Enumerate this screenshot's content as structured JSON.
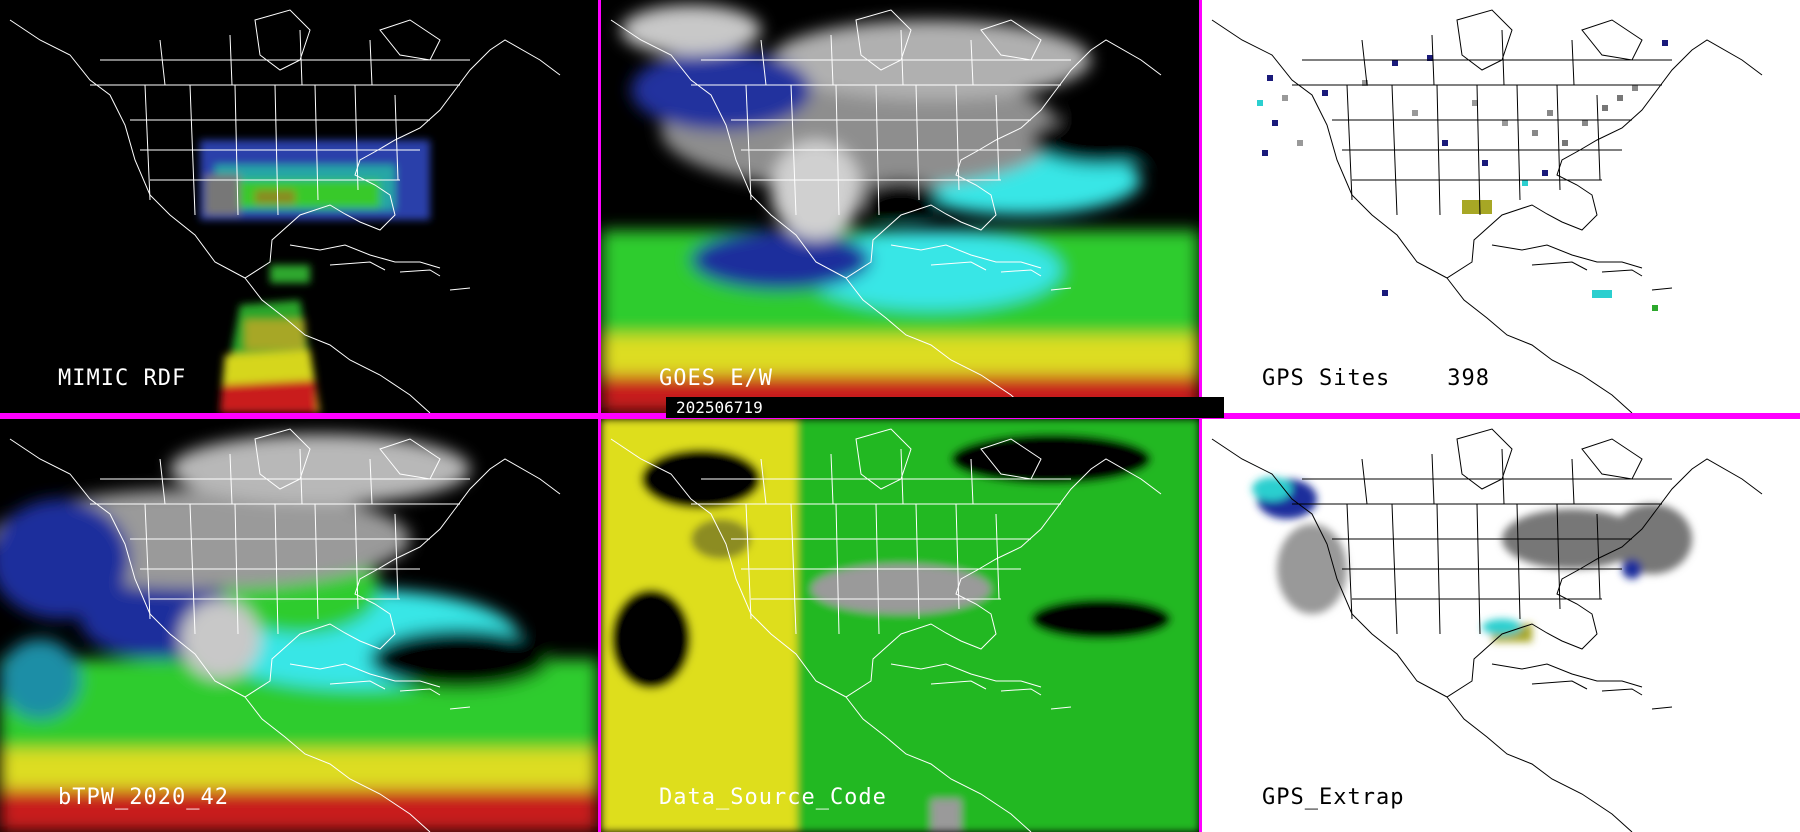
{
  "timestamp": "202506719",
  "colors": {
    "divider": "#ff00ff",
    "map_lines_dark": "#ffffff",
    "map_lines_light": "#000000"
  },
  "panels": [
    {
      "label": "MIMIC RDF",
      "background": "#000000"
    },
    {
      "label": "GOES E/W",
      "background": "#000000"
    },
    {
      "label": "GPS Sites",
      "count": "398",
      "background": "#ffffff"
    },
    {
      "label": "bTPW_2020_42",
      "background": "#000000"
    },
    {
      "label": "Data_Source_Code",
      "background": "#000000"
    },
    {
      "label": "GPS_Extrap",
      "background": "#ffffff"
    }
  ]
}
